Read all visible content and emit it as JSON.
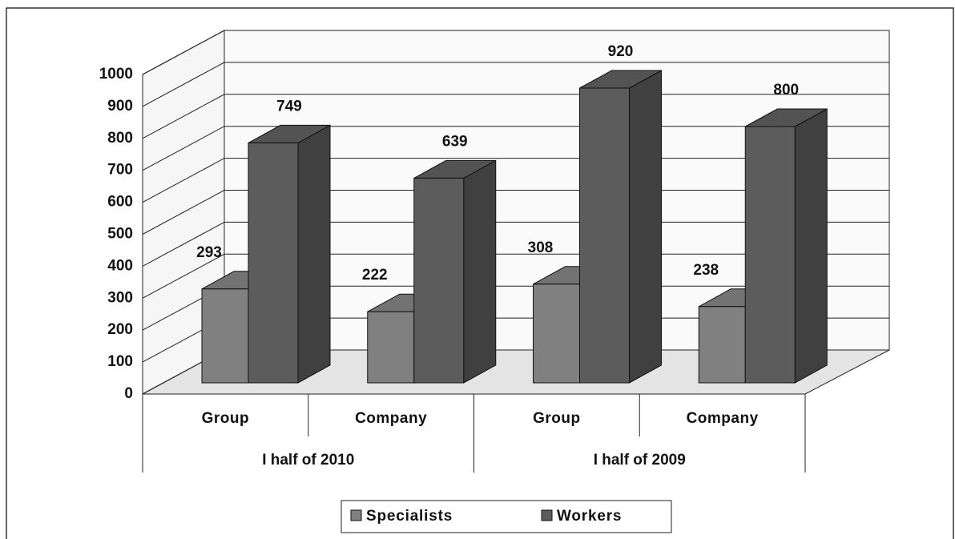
{
  "chart_data": {
    "type": "bar3d",
    "groups": [
      {
        "name": "I half of 2010",
        "categories": [
          "Group",
          "Company"
        ]
      },
      {
        "name": "I half of 2009",
        "categories": [
          "Group",
          "Company"
        ]
      }
    ],
    "series": [
      {
        "name": "Specialists",
        "color": "#808080",
        "values": [
          293,
          222,
          308,
          238
        ]
      },
      {
        "name": "Workers",
        "color": "#5c5c5c",
        "values": [
          749,
          639,
          920,
          800
        ]
      }
    ],
    "ylim": [
      0,
      1000
    ],
    "yticks": [
      0,
      100,
      200,
      300,
      400,
      500,
      600,
      700,
      800,
      900,
      1000
    ],
    "grid": true
  }
}
